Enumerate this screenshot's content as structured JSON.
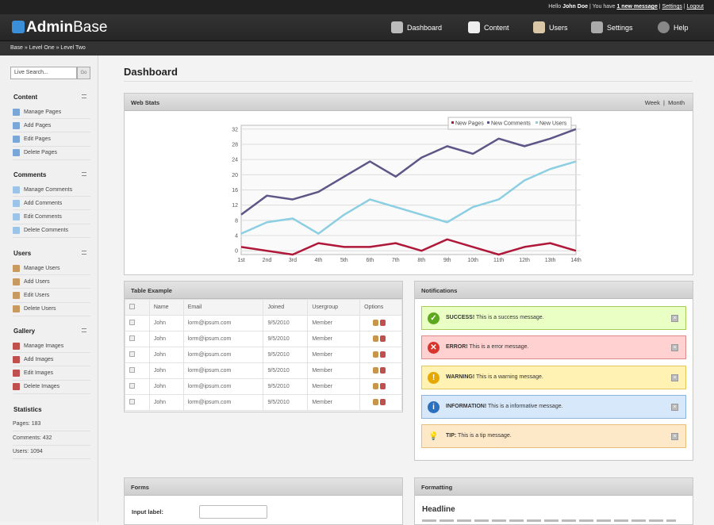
{
  "topbar": {
    "hello": "Hello",
    "user": "John Doe",
    "you_have": "| You have",
    "messages": "1 new message",
    "settings": "Settings",
    "logout": "Logout"
  },
  "logo": {
    "bold": "Admin",
    "rest": "Base"
  },
  "nav": [
    {
      "label": "Dashboard",
      "icon": "gear-icon"
    },
    {
      "label": "Content",
      "icon": "document-icon"
    },
    {
      "label": "Users",
      "icon": "user-icon"
    },
    {
      "label": "Settings",
      "icon": "settings-icon"
    },
    {
      "label": "Help",
      "icon": "help-icon"
    }
  ],
  "breadcrumb": "Base » Level One » Level Two",
  "search": {
    "placeholder": "Live Search...",
    "go": "Go"
  },
  "sidebar": [
    {
      "title": "Content",
      "items": [
        "Manage Pages",
        "Add Pages",
        "Edit Pages",
        "Delete Pages"
      ]
    },
    {
      "title": "Comments",
      "items": [
        "Manage Comments",
        "Add Comments",
        "Edit Comments",
        "Delete Comments"
      ]
    },
    {
      "title": "Users",
      "items": [
        "Manage Users",
        "Add Users",
        "Edit Users",
        "Delete Users"
      ]
    },
    {
      "title": "Gallery",
      "items": [
        "Manage Images",
        "Add Images",
        "Edit Images",
        "Delete Images"
      ]
    }
  ],
  "statistics": {
    "title": "Statistics",
    "items": [
      "Pages: 183",
      "Comments: 432",
      "Users: 1094"
    ]
  },
  "page_title": "Dashboard",
  "webstats": {
    "title": "Web Stats",
    "week": "Week",
    "sep": "|",
    "month": "Month"
  },
  "chart_data": {
    "type": "line",
    "categories": [
      "1st",
      "2nd",
      "3rd",
      "4th",
      "5th",
      "6th",
      "7th",
      "8th",
      "9th",
      "10th",
      "11th",
      "12th",
      "13th",
      "14th"
    ],
    "yticks": [
      0,
      4,
      8,
      12,
      16,
      20,
      24,
      28,
      32
    ],
    "ylim": [
      -1,
      33
    ],
    "legend": "top-right",
    "grid": true,
    "series": [
      {
        "name": "New Pages",
        "color": "#b0183a",
        "values": [
          1,
          0,
          -1,
          2,
          1,
          1,
          2,
          0,
          3,
          1,
          -1,
          1,
          2,
          0
        ]
      },
      {
        "name": "New Comments",
        "color": "#5f5587",
        "values": [
          9.5,
          14.5,
          13.5,
          15.5,
          19.5,
          23.5,
          19.5,
          24.5,
          27.5,
          25.5,
          29.5,
          27.5,
          29.5,
          32
        ]
      },
      {
        "name": "New Users",
        "color": "#8ccfe3",
        "values": [
          4.5,
          7.5,
          8.5,
          4.5,
          9.5,
          13.5,
          11.5,
          9.5,
          7.5,
          11.5,
          13.5,
          18.5,
          21.5,
          23.5
        ]
      }
    ]
  },
  "table": {
    "title": "Table Example",
    "headers": [
      "Name",
      "Email",
      "Joined",
      "Usergroup",
      "Options"
    ],
    "rows": [
      [
        "John",
        "lorm@ipsum.com",
        "9/5/2010",
        "Member"
      ],
      [
        "John",
        "lorm@ipsum.com",
        "9/5/2010",
        "Member"
      ],
      [
        "John",
        "lorm@ipsum.com",
        "9/5/2010",
        "Member"
      ],
      [
        "John",
        "lorm@ipsum.com",
        "9/5/2010",
        "Member"
      ],
      [
        "John",
        "lorm@ipsum.com",
        "9/5/2010",
        "Member"
      ],
      [
        "John",
        "lorm@ipsum.com",
        "9/5/2010",
        "Member"
      ]
    ]
  },
  "notifications": {
    "title": "Notifications",
    "items": [
      {
        "label": "SUCCESS!",
        "text": " This is a success message.",
        "bg": "#eaffc4",
        "border": "#a8cc5a",
        "icon": "✓",
        "iconbg": "#5ea81d",
        "name": "success"
      },
      {
        "label": "ERROR!",
        "text": " This is a error message.",
        "bg": "#ffd1d1",
        "border": "#e08a8a",
        "icon": "✕",
        "iconbg": "#d9342b",
        "name": "error"
      },
      {
        "label": "WARNING!",
        "text": " This is a warning message.",
        "bg": "#fff2b3",
        "border": "#e3c75a",
        "icon": "!",
        "iconbg": "#e6a800",
        "name": "warning"
      },
      {
        "label": "INFORMATION!",
        "text": " This is a informative message.",
        "bg": "#d6e8f9",
        "border": "#8ab4dd",
        "icon": "i",
        "iconbg": "#2b6fbf",
        "name": "information"
      },
      {
        "label": "TIP:",
        "text": " This is a tip message.",
        "bg": "#fde8c8",
        "border": "#e6bf7f",
        "icon": "💡",
        "iconbg": "transparent",
        "name": "tip"
      }
    ]
  },
  "forms": {
    "title": "Forms",
    "input_label": "Input label:"
  },
  "formatting": {
    "title": "Formatting",
    "headline": "Headline"
  }
}
